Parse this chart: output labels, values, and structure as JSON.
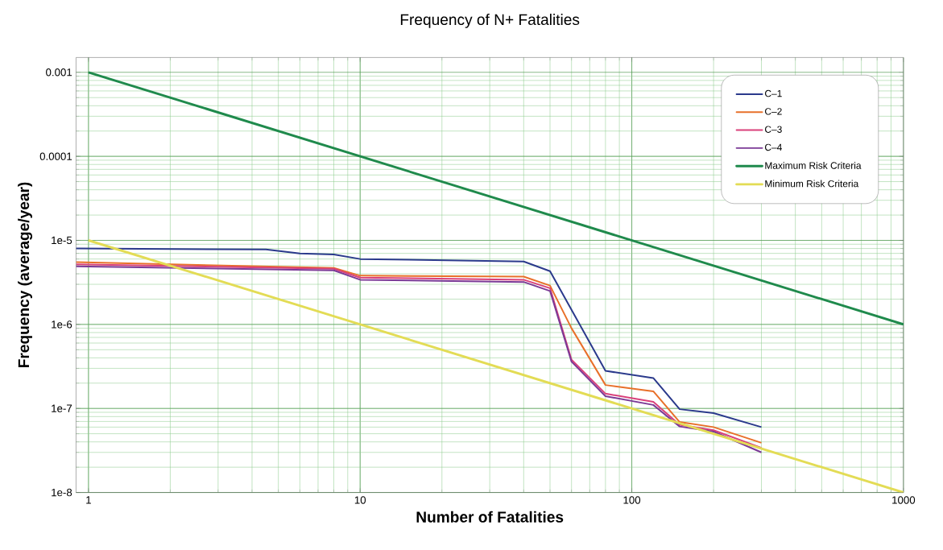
{
  "chart_data": {
    "type": "line",
    "title": "Frequency of N+ Fatalities",
    "xlabel": "Number of Fatalities",
    "ylabel": "Frequency (average/year)",
    "log": "xy",
    "grid": true,
    "legend": "top right",
    "marker": "none",
    "line_style": "solid",
    "xlim": [
      0.9,
      1000
    ],
    "ylim": [
      1e-08,
      0.0015
    ],
    "xticks": [
      1,
      10,
      100,
      1000
    ],
    "yticks": [
      {
        "value": 1e-08,
        "label": "1e-8"
      },
      {
        "value": 1e-07,
        "label": "1e-7"
      },
      {
        "value": 1e-06,
        "label": "1e-6"
      },
      {
        "value": 1e-05,
        "label": "1e-5"
      },
      {
        "value": 0.0001,
        "label": "0.0001"
      },
      {
        "value": 0.001,
        "label": "0.001"
      }
    ],
    "series": [
      {
        "name": "C–1",
        "color": "#2b3a8c",
        "x": [
          0.9,
          4.5,
          6,
          8,
          10,
          40,
          50,
          80,
          120,
          150,
          200,
          300
        ],
        "values": [
          8e-06,
          7.8e-06,
          7e-06,
          6.8e-06,
          6e-06,
          5.6e-06,
          4.3e-06,
          2.8e-07,
          2.3e-07,
          9.8e-08,
          8.8e-08,
          6e-08
        ]
      },
      {
        "name": "C–2",
        "color": "#e8702a",
        "x": [
          0.9,
          8,
          10,
          40,
          50,
          60,
          80,
          120,
          150,
          200,
          300
        ],
        "values": [
          5.5e-06,
          4.7e-06,
          3.8e-06,
          3.7e-06,
          2.9e-06,
          9e-07,
          1.9e-07,
          1.6e-07,
          6.9e-08,
          6e-08,
          3.9e-08
        ]
      },
      {
        "name": "C–3",
        "color": "#d9407a",
        "x": [
          0.9,
          8,
          10,
          40,
          50,
          60,
          80,
          120,
          150,
          200,
          300
        ],
        "values": [
          5.2e-06,
          4.6e-06,
          3.6e-06,
          3.4e-06,
          2.7e-06,
          3.8e-07,
          1.5e-07,
          1.2e-07,
          6.4e-08,
          5.5e-08,
          3.4e-08
        ]
      },
      {
        "name": "C–4",
        "color": "#7b3a96",
        "x": [
          0.9,
          8,
          10,
          40,
          50,
          60,
          80,
          120,
          150,
          200,
          300
        ],
        "values": [
          4.9e-06,
          4.4e-06,
          3.4e-06,
          3.2e-06,
          2.5e-06,
          3.6e-07,
          1.4e-07,
          1.1e-07,
          6.1e-08,
          5.3e-08,
          3e-08
        ]
      },
      {
        "name": "Maximum Risk Criteria",
        "color": "#1f8a4c",
        "x": [
          1,
          1000
        ],
        "values": [
          0.001,
          1e-06
        ]
      },
      {
        "name": "Minimum Risk Criteria",
        "color": "#e3dc55",
        "x": [
          1,
          1000
        ],
        "values": [
          1e-05,
          1e-08
        ]
      }
    ]
  }
}
